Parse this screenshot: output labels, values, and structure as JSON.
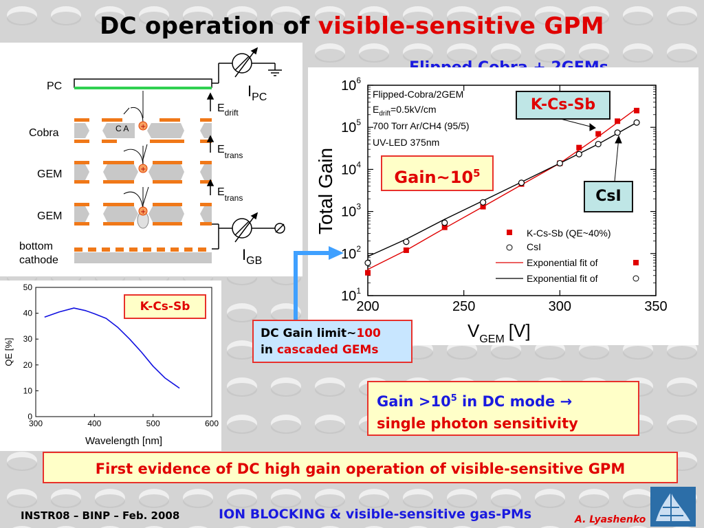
{
  "title": {
    "prefix": "DC operation of",
    "highlight": "visible-sensitive GPM"
  },
  "subtitle": "Flipped Cobra + 2GEMs",
  "schematic": {
    "labels": {
      "pc": "PC",
      "cobra": "Cobra",
      "gem1": "GEM",
      "gem2": "GEM",
      "bottom1": "bottom",
      "bottom2": "cathode",
      "ca": "C A"
    },
    "currents": {
      "ipc_main": "I",
      "ipc_sub": "PC",
      "igb_main": "I",
      "igb_sub": "GB"
    },
    "fields": {
      "drift_main": "E",
      "drift_sub": "drift",
      "trans1_main": "E",
      "trans1_sub": "trans",
      "trans2_main": "E",
      "trans2_sub": "trans"
    },
    "colors": {
      "electrode": "#f07818",
      "pc_green": "#30d050",
      "plate": "#c8c8c8"
    }
  },
  "chart_data": [
    {
      "type": "scatter",
      "title": "",
      "xlabel": "V",
      "xlabel_sub": "GEM",
      "xlabel_unit": "[V]",
      "ylabel": "Total Gain",
      "xlim": [
        200,
        350
      ],
      "ylim": [
        10,
        1000000
      ],
      "yscale": "log",
      "xticks": [
        "200",
        "250",
        "300",
        "350"
      ],
      "yticks": [
        {
          "base": "10",
          "exp": "1",
          "v": 10
        },
        {
          "base": "10",
          "exp": "2",
          "v": 100
        },
        {
          "base": "10",
          "exp": "3",
          "v": 1000
        },
        {
          "base": "10",
          "exp": "4",
          "v": 10000
        },
        {
          "base": "10",
          "exp": "5",
          "v": 100000
        },
        {
          "base": "10",
          "exp": "6",
          "v": 1000000
        }
      ],
      "annotation_lines": [
        {
          "text": "Flipped-Cobra/2GEM"
        },
        {
          "main": "E",
          "sub": "drift",
          "rest": "=0.5kV/cm"
        },
        {
          "text": "700 Torr Ar/CH4 (95/5)"
        },
        {
          "text": "UV-LED 375nm"
        }
      ],
      "legend": [
        {
          "label": "K-Cs-Sb (QE~40%)",
          "marker": "square"
        },
        {
          "label": "CsI",
          "marker": "circle"
        },
        {
          "label": "Exponential fit of",
          "marker": "line-red"
        },
        {
          "label": "Exponential fit of",
          "marker": "line-black"
        }
      ],
      "series": [
        {
          "name": "K-Cs-Sb (QE~40%)",
          "color": "#e00000",
          "marker": "square",
          "x": [
            200,
            220,
            240,
            260,
            280,
            300,
            310,
            320,
            330,
            340
          ],
          "y": [
            35,
            120,
            420,
            1300,
            4500,
            14000,
            33000,
            70000,
            140000,
            250000
          ]
        },
        {
          "name": "CsI",
          "color": "#000000",
          "marker": "circle",
          "x": [
            200,
            220,
            240,
            260,
            280,
            300,
            310,
            320,
            330,
            340
          ],
          "y": [
            60,
            190,
            540,
            1650,
            4800,
            14000,
            23000,
            40000,
            75000,
            130000
          ]
        },
        {
          "name": "Exponential fit of",
          "color": "#e00000",
          "marker": "line",
          "x": [
            200,
            220,
            240,
            260,
            280,
            300,
            320,
            340
          ],
          "y": [
            42,
            120,
            400,
            1300,
            4300,
            14000,
            60000,
            280000
          ]
        },
        {
          "name": "Exponential fit of",
          "color": "#000000",
          "marker": "line",
          "x": [
            200,
            220,
            240,
            260,
            280,
            300,
            320,
            340
          ],
          "y": [
            85,
            220,
            650,
            1800,
            5000,
            14000,
            40000,
            130000
          ]
        }
      ],
      "callouts": {
        "kcssb": "K-Cs-Sb",
        "csi": "CsI",
        "gain_main": "Gain~10",
        "gain_exp": "5"
      }
    },
    {
      "type": "line",
      "title": "",
      "xlabel": "Wavelength [nm]",
      "ylabel": "QE [%]",
      "xlim": [
        300,
        600
      ],
      "ylim": [
        0,
        50
      ],
      "xticks": [
        "300",
        "400",
        "500",
        "600"
      ],
      "yticks": [
        "0",
        "10",
        "20",
        "30",
        "40",
        "50"
      ],
      "legend_box": "K-Cs-Sb",
      "series": [
        {
          "name": "K-Cs-Sb",
          "color": "#1010e0",
          "x": [
            315,
            340,
            365,
            385,
            400,
            420,
            440,
            460,
            480,
            500,
            520,
            545
          ],
          "y": [
            38.5,
            40.5,
            42,
            41,
            39.8,
            38,
            34.5,
            30,
            25,
            19.5,
            15,
            11
          ]
        }
      ]
    }
  ],
  "notes": {
    "dc_limit": {
      "line1_pre": "DC Gain limit~",
      "line1_val": "100",
      "line2_pre": "in ",
      "line2_rest": "cascaded GEMs"
    },
    "gain_mode": {
      "line1_pre": "Gain >10",
      "line1_exp": "5",
      "line1_post": " in DC mode ",
      "arrow": "→",
      "line2": "single photon sensitivity"
    },
    "conclusion": "First evidence of DC high gain operation of visible-sensitive GPM"
  },
  "footer": {
    "left": "INSTR08 – BINP – Feb. 2008",
    "center": "ION BLOCKING & visible-sensitive gas-PMs",
    "right": "A. Lyashenko"
  }
}
